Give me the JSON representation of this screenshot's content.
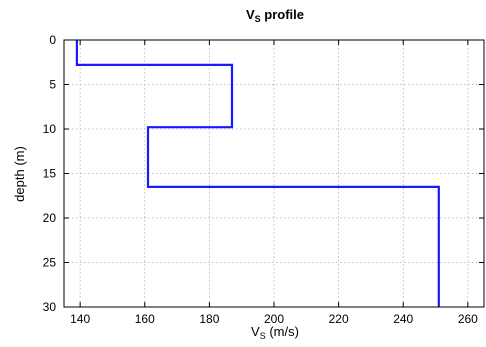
{
  "chart_data": {
    "type": "line",
    "title": "V",
    "title_sub": "S",
    "title_rest": " profile",
    "xlabel": "V",
    "xlabel_sub": "S",
    "xlabel_rest": " (m/s)",
    "ylabel": "depth (m)",
    "xlim": [
      135,
      265
    ],
    "ylim": [
      0,
      30
    ],
    "y_reversed": true,
    "grid": true,
    "xticks": [
      140,
      160,
      180,
      200,
      220,
      240,
      260
    ],
    "yticks": [
      0,
      5,
      10,
      15,
      20,
      25,
      30
    ],
    "series": [
      {
        "color": "#1a1aff",
        "x": [
          139,
          139,
          187,
          187,
          161,
          161,
          251,
          251
        ],
        "y": [
          0,
          2.8,
          2.8,
          9.8,
          9.8,
          16.5,
          16.5,
          30
        ]
      }
    ]
  }
}
